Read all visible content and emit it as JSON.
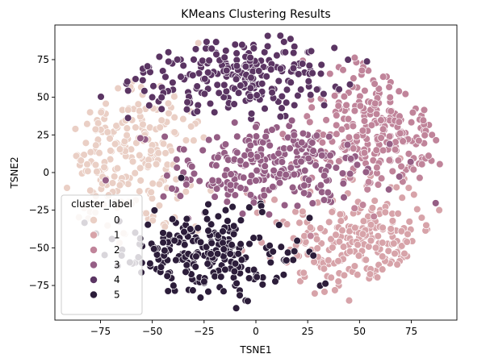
{
  "chart_data": {
    "type": "scatter",
    "title": "KMeans Clustering Results",
    "xlabel": "TSNE1",
    "ylabel": "TSNE2",
    "xlim": [
      -97,
      97
    ],
    "ylim": [
      -98,
      98
    ],
    "xticks": [
      -75,
      -50,
      -25,
      0,
      25,
      50,
      75
    ],
    "yticks": [
      -75,
      -50,
      -25,
      0,
      25,
      50,
      75
    ],
    "grid": false,
    "legend": {
      "title": "cluster_label",
      "placement": "lower-left"
    },
    "series": [
      {
        "name": "0",
        "color": "#eacfc5",
        "center": [
          -62,
          12
        ],
        "spread": [
          15,
          24
        ],
        "count": 230,
        "seed": 11,
        "sample_points": [
          [
            -80,
            40
          ],
          [
            -70,
            25
          ],
          [
            -60,
            10
          ],
          [
            -75,
            -5
          ],
          [
            -55,
            35
          ],
          [
            -85,
            5
          ],
          [
            -45,
            20
          ],
          [
            -65,
            -20
          ]
        ]
      },
      {
        "name": "1",
        "color": "#d7a3a9",
        "center": [
          50,
          -48
        ],
        "spread": [
          22,
          20
        ],
        "count": 230,
        "seed": 23,
        "sample_points": [
          [
            30,
            -60
          ],
          [
            55,
            -40
          ],
          [
            70,
            -55
          ],
          [
            40,
            -75
          ],
          [
            60,
            -25
          ],
          [
            25,
            -40
          ],
          [
            80,
            -30
          ],
          [
            45,
            -85
          ]
        ]
      },
      {
        "name": "2",
        "color": "#c0849a",
        "center": [
          60,
          30
        ],
        "spread": [
          17,
          22
        ],
        "count": 240,
        "seed": 37,
        "sample_points": [
          [
            50,
            50
          ],
          [
            70,
            35
          ],
          [
            80,
            10
          ],
          [
            45,
            20
          ],
          [
            65,
            60
          ],
          [
            85,
            25
          ],
          [
            55,
            0
          ],
          [
            40,
            70
          ]
        ]
      },
      {
        "name": "3",
        "color": "#955e85",
        "center": [
          8,
          5
        ],
        "spread": [
          24,
          14
        ],
        "count": 240,
        "seed": 41,
        "sample_points": [
          [
            -20,
            10
          ],
          [
            0,
            20
          ],
          [
            20,
            5
          ],
          [
            30,
            -10
          ],
          [
            -10,
            -15
          ],
          [
            10,
            30
          ],
          [
            -35,
            0
          ],
          [
            25,
            25
          ]
        ]
      },
      {
        "name": "4",
        "color": "#5b3563",
        "center": [
          -10,
          65
        ],
        "spread": [
          24,
          13
        ],
        "count": 230,
        "seed": 53,
        "sample_points": [
          [
            -30,
            75
          ],
          [
            -10,
            85
          ],
          [
            10,
            70
          ],
          [
            25,
            80
          ],
          [
            -40,
            55
          ],
          [
            0,
            50
          ],
          [
            -20,
            40
          ],
          [
            15,
            55
          ]
        ]
      },
      {
        "name": "5",
        "color": "#2c1d3a",
        "center": [
          -25,
          -55
        ],
        "spread": [
          22,
          16
        ],
        "count": 240,
        "seed": 67,
        "sample_points": [
          [
            -45,
            -40
          ],
          [
            -30,
            -60
          ],
          [
            -10,
            -75
          ],
          [
            5,
            -50
          ],
          [
            -55,
            -60
          ],
          [
            -20,
            -40
          ],
          [
            -5,
            -85
          ],
          [
            10,
            -70
          ]
        ]
      }
    ]
  }
}
